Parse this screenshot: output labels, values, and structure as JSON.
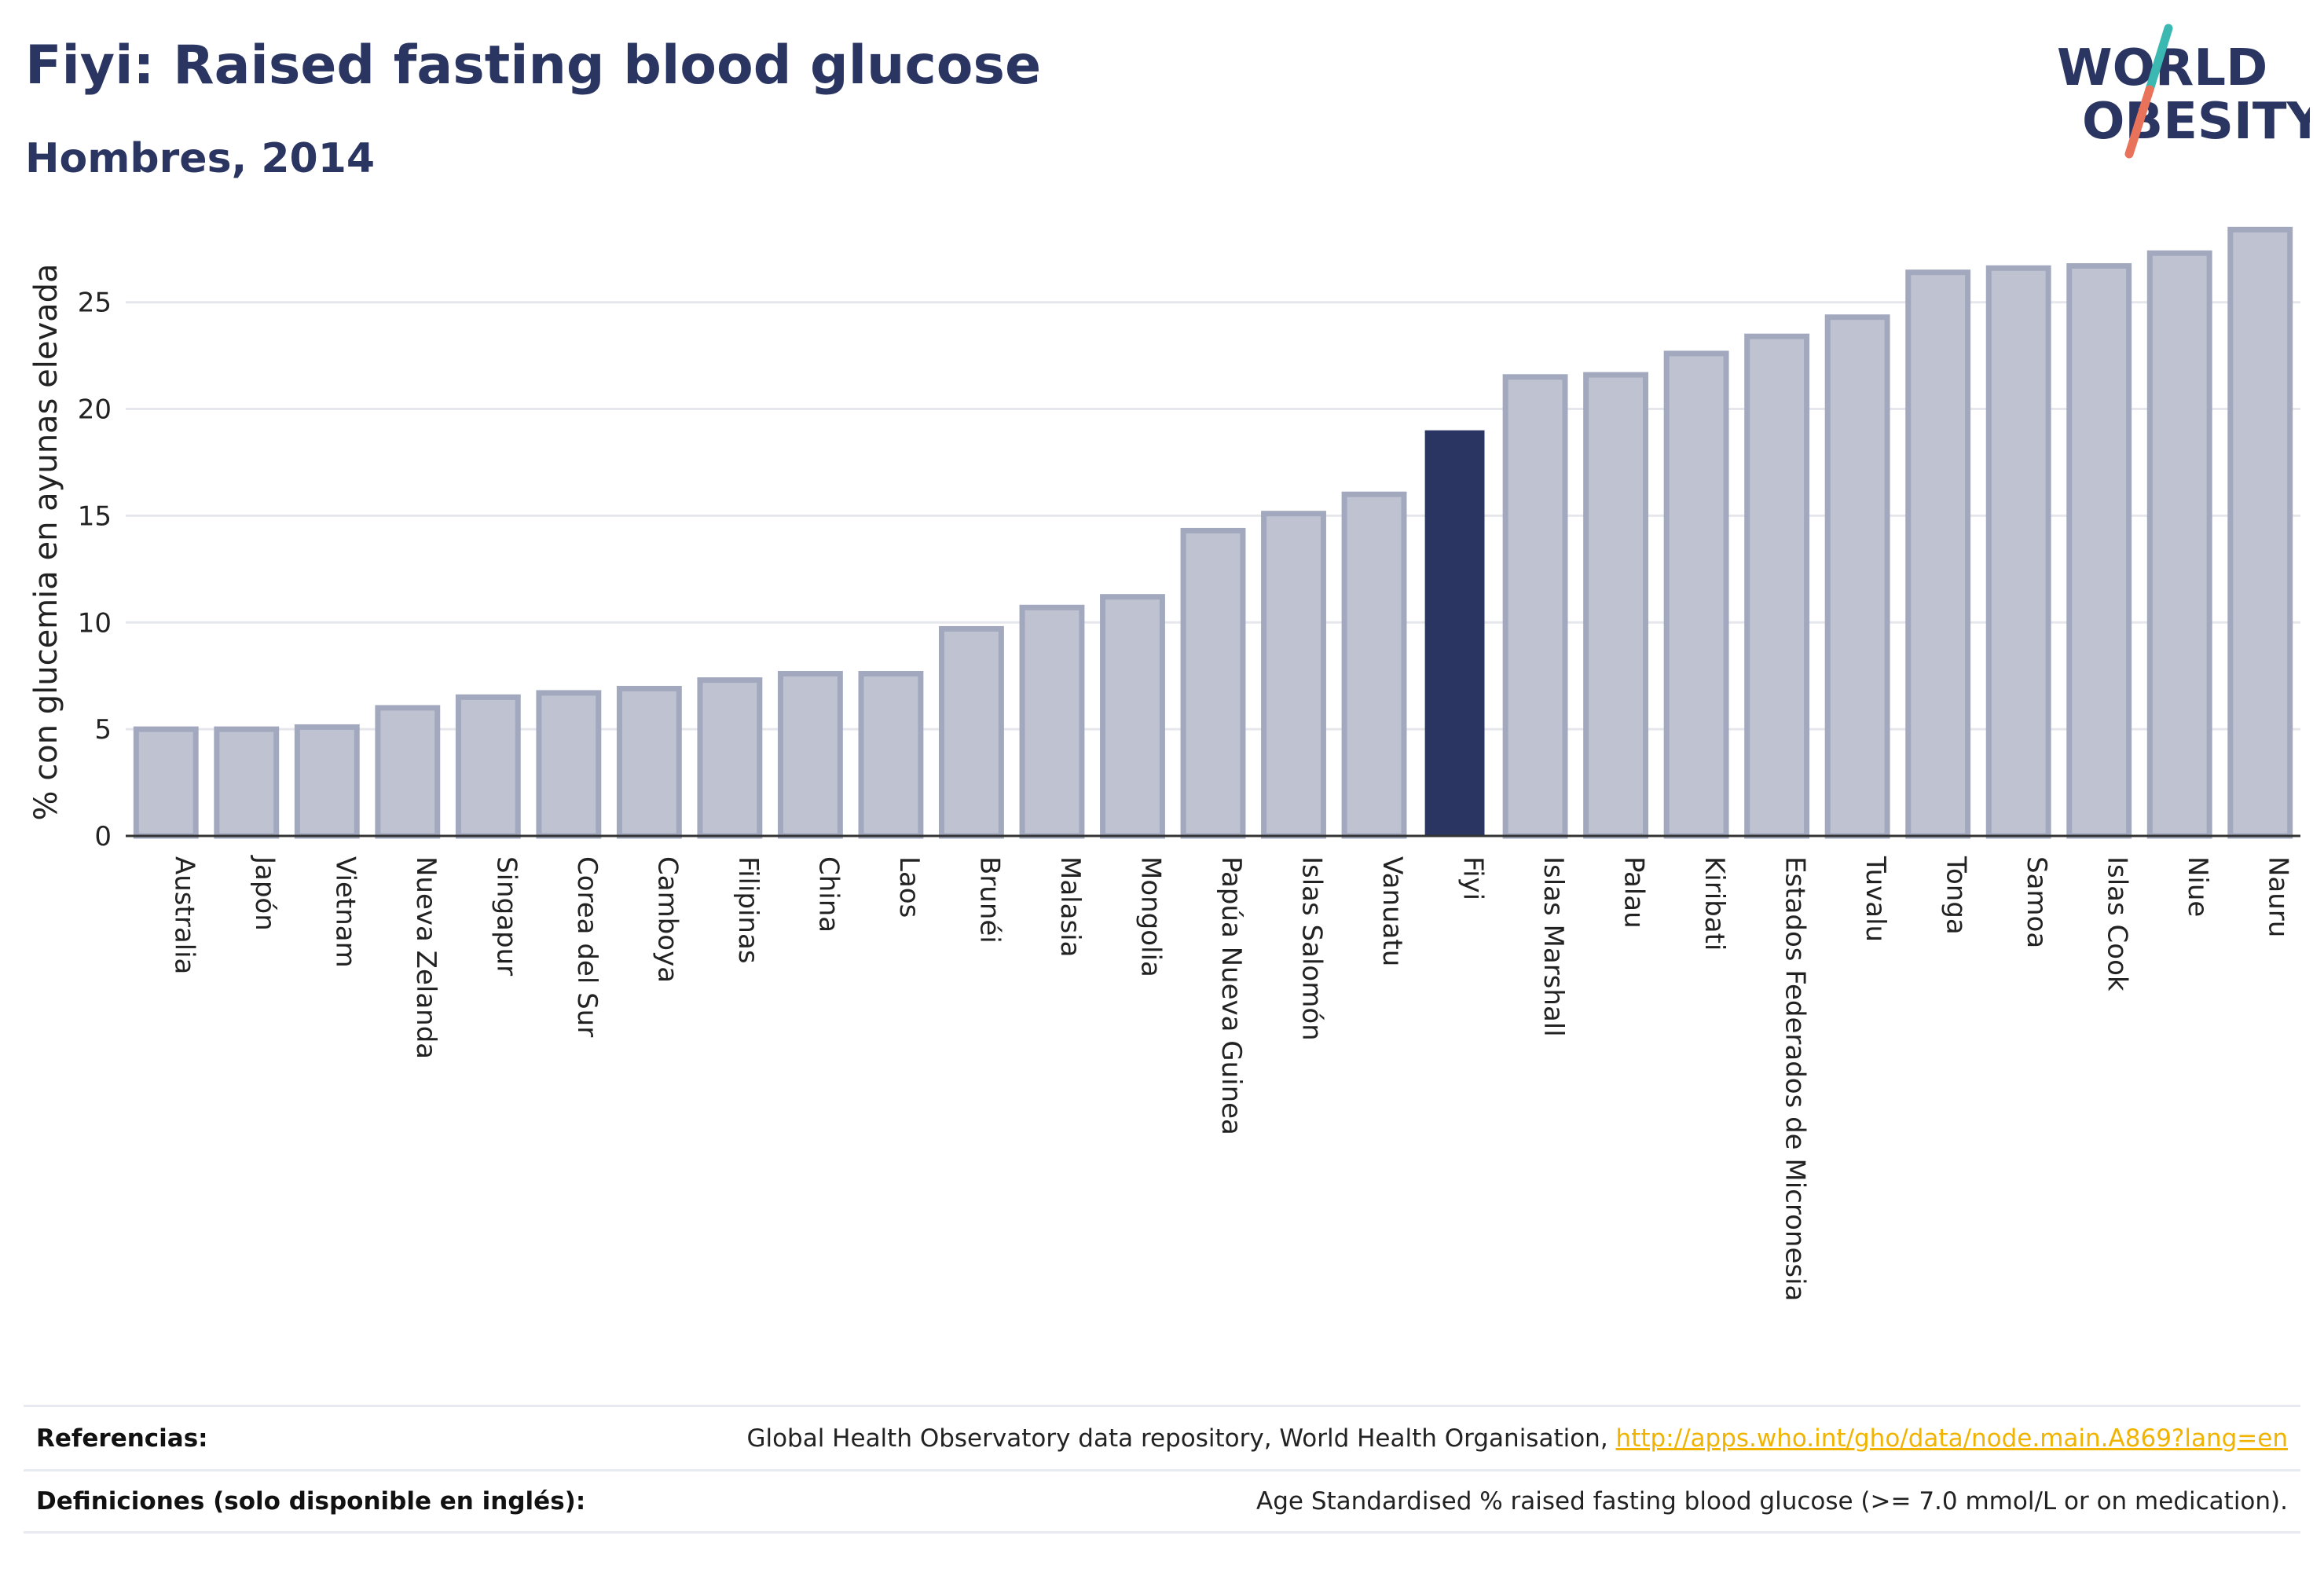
{
  "header": {
    "title": "Fiyi: Raised fasting blood glucose",
    "subtitle": "Hombres, 2014"
  },
  "logo": {
    "line1": "WORLD",
    "line2": "OBESITY",
    "text_color": "#2a3561",
    "slash_color_top": "#3cb8b2",
    "slash_color_bottom": "#e8735a"
  },
  "colors": {
    "bar_fill": "#bfc3d1",
    "bar_stroke": "#a2a8be",
    "highlight": "#2a3561",
    "grid": "#e6e7ec",
    "axis": "#333333"
  },
  "chart_data": {
    "type": "bar",
    "ylabel": "% con glucemia en ayunas elevada",
    "xlabel": "",
    "ylim": [
      0,
      29
    ],
    "yticks": [
      0,
      5,
      10,
      15,
      20,
      25
    ],
    "grid": true,
    "highlight": "Fiyi",
    "categories": [
      "Australia",
      "Japón",
      "Vietnam",
      "Nueva Zelanda",
      "Singapur",
      "Corea del Sur",
      "Camboya",
      "Filipinas",
      "China",
      "Laos",
      "Brunéi",
      "Malasia",
      "Mongolia",
      "Papúa Nueva Guinea",
      "Islas Salomón",
      "Vanuatu",
      "Fiyi",
      "Islas Marshall",
      "Palau",
      "Kiribati",
      "Estados Federados de Micronesia",
      "Tuvalu",
      "Tonga",
      "Samoa",
      "Islas Cook",
      "Niue",
      "Nauru"
    ],
    "values": [
      5.0,
      5.0,
      5.1,
      6.0,
      6.5,
      6.7,
      6.9,
      7.3,
      7.6,
      7.6,
      9.7,
      10.7,
      11.2,
      14.3,
      15.1,
      16.0,
      19.0,
      21.5,
      21.6,
      22.6,
      23.4,
      24.3,
      26.4,
      26.6,
      26.7,
      27.3,
      28.4
    ]
  },
  "footer": {
    "references_label": "Referencias:",
    "references_text": "Global Health Observatory data repository, World Health Organisation,",
    "references_link": "http://apps.who.int/gho/data/node.main.A869?lang=en",
    "definitions_label": "Definiciones (solo disponible en inglés):",
    "definitions_text": "Age Standardised % raised fasting blood glucose (>= 7.0 mmol/L or on medication)."
  }
}
